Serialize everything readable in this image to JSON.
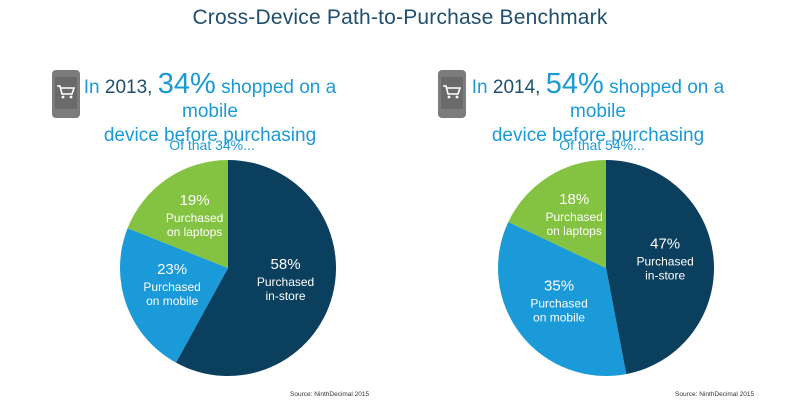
{
  "title": "Cross-Device Path-to-Purchase Benchmark",
  "panels": [
    {
      "icon": "shopping-cart-phone-icon",
      "headline": {
        "prefix": "In",
        "year": "2013,",
        "percent": "34%",
        "line1_rest": "shopped on a mobile",
        "line2": "device before purchasing"
      },
      "subhead": "Of that 34%..."
    },
    {
      "icon": "shopping-cart-phone-icon",
      "headline": {
        "prefix": "In",
        "year": "2014,",
        "percent": "54%",
        "line1_rest": "shopped on a mobile",
        "line2": "device before purchasing"
      },
      "subhead": "Of that 54%..."
    }
  ],
  "colors": {
    "instore": "#0b3f5e",
    "mobile": "#1a9ad8",
    "laptops": "#84c341",
    "title": "#1f4e6e",
    "accent": "#1b9ad6"
  },
  "chart_data": [
    {
      "type": "pie",
      "title": "Of that 34%...",
      "slices": [
        {
          "label_value": "58%",
          "label_lines": [
            "Purchased",
            "in-store"
          ],
          "value": 58
        },
        {
          "label_value": "23%",
          "label_lines": [
            "Purchased",
            "on mobile"
          ],
          "value": 23
        },
        {
          "label_value": "19%",
          "label_lines": [
            "Purchased",
            "on laptops"
          ],
          "value": 19
        }
      ],
      "source": "Source: NinthDecimal 2015"
    },
    {
      "type": "pie",
      "title": "Of that 54%...",
      "slices": [
        {
          "label_value": "47%",
          "label_lines": [
            "Purchased",
            "in-store"
          ],
          "value": 47
        },
        {
          "label_value": "35%",
          "label_lines": [
            "Purchased",
            "on mobile"
          ],
          "value": 35
        },
        {
          "label_value": "18%",
          "label_lines": [
            "Purchased",
            "on laptops"
          ],
          "value": 18
        }
      ],
      "source": "Source: NinthDecimal 2015"
    }
  ]
}
